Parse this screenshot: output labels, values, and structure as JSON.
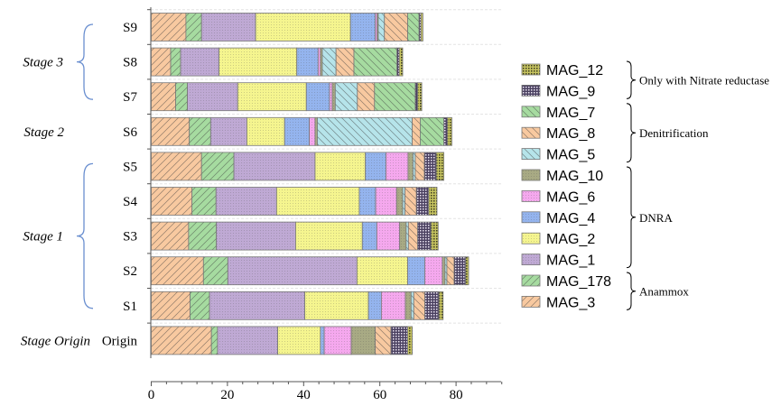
{
  "chart_data": {
    "type": "bar",
    "orientation": "horizontal",
    "stacked": true,
    "title": "",
    "xlabel": "",
    "ylabel": "",
    "xlim": [
      0,
      92
    ],
    "xticks": [
      0,
      20,
      40,
      60,
      80
    ],
    "grid": false,
    "legend_position": "right",
    "categories": [
      "S9",
      "S8",
      "S7",
      "S6",
      "S5",
      "S4",
      "S3",
      "S2",
      "S1",
      "Origin"
    ],
    "series": [
      {
        "name": "MAG_3",
        "color": "#F8C9A0",
        "pattern": "hatch-fwd",
        "values": [
          9.1,
          5.1,
          6.4,
          10.0,
          13.2,
          10.7,
          9.8,
          13.7,
          10.2,
          15.8
        ]
      },
      {
        "name": "MAG_178",
        "color": "#A6DBA0",
        "pattern": "hatch-fwd",
        "values": [
          4.1,
          2.6,
          3.1,
          5.6,
          8.5,
          6.3,
          7.3,
          6.4,
          5.1,
          1.6
        ]
      },
      {
        "name": "MAG_1",
        "color": "#BFA9D4",
        "pattern": "dots",
        "values": [
          14.2,
          10.1,
          13.2,
          9.5,
          21.3,
          15.9,
          20.8,
          33.9,
          25.0,
          15.8
        ]
      },
      {
        "name": "MAG_2",
        "color": "#F5F58F",
        "pattern": "dots",
        "values": [
          24.9,
          20.4,
          18.0,
          9.9,
          13.2,
          21.7,
          17.5,
          13.3,
          16.7,
          11.2
        ]
      },
      {
        "name": "MAG_4",
        "color": "#94B4EE",
        "pattern": "dots",
        "values": [
          6.5,
          5.6,
          6.1,
          6.5,
          5.4,
          4.3,
          3.8,
          4.5,
          3.4,
          1.0
        ]
      },
      {
        "name": "MAG_6",
        "color": "#F5A8EE",
        "pattern": "dots",
        "values": [
          0.5,
          0.6,
          0.7,
          1.5,
          5.8,
          5.5,
          6.0,
          4.6,
          6.3,
          7.1
        ]
      },
      {
        "name": "MAG_10",
        "color": "#A8AA84",
        "pattern": "dots",
        "values": [
          0.3,
          0.5,
          0.8,
          0.6,
          1.3,
          1.6,
          1.7,
          0.7,
          1.5,
          6.3
        ]
      },
      {
        "name": "MAG_5",
        "color": "#B6E4EA",
        "pattern": "hatch-back",
        "values": [
          1.6,
          3.6,
          5.8,
          24.9,
          0.6,
          0.6,
          0.6,
          0.5,
          0.7,
          0
        ]
      },
      {
        "name": "MAG_8",
        "color": "#F8C9A0",
        "pattern": "hatch-back",
        "values": [
          6.1,
          4.7,
          4.5,
          2.1,
          2.4,
          3.0,
          2.4,
          1.9,
          2.9,
          4.1
        ]
      },
      {
        "name": "MAG_7",
        "color": "#A6DBA0",
        "pattern": "hatch-back",
        "values": [
          3.0,
          11.3,
          10.7,
          6.2,
          0,
          0,
          0,
          0,
          0,
          0
        ]
      },
      {
        "name": "MAG_9",
        "color": "#4A4060",
        "pattern": "grid",
        "values": [
          0.5,
          0.6,
          0.6,
          0.9,
          3.1,
          3.2,
          3.5,
          3.0,
          3.7,
          4.4
        ]
      },
      {
        "name": "MAG_12",
        "color": "#C7C460",
        "pattern": "grid",
        "values": [
          0.5,
          0.9,
          1.1,
          1.2,
          2.0,
          2.2,
          1.9,
          0.8,
          1.1,
          1.2
        ]
      }
    ],
    "legend_order": [
      "MAG_12",
      "MAG_9",
      "MAG_7",
      "MAG_8",
      "MAG_5",
      "MAG_10",
      "MAG_6",
      "MAG_4",
      "MAG_2",
      "MAG_1",
      "MAG_178",
      "MAG_3"
    ],
    "legend_groups": [
      {
        "label": "Only with Nitrate reductase",
        "from": 0,
        "to": 1
      },
      {
        "label": "Denitrification",
        "from": 2,
        "to": 4
      },
      {
        "label": "DNRA",
        "from": 5,
        "to": 9
      },
      {
        "label": "Anammox",
        "from": 10,
        "to": 11
      }
    ],
    "stages": [
      {
        "label": "Stage 3",
        "from": 0,
        "to": 2,
        "brace": true
      },
      {
        "label": "Stage 2",
        "from": 3,
        "to": 3,
        "brace": false
      },
      {
        "label": "Stage 1",
        "from": 4,
        "to": 8,
        "brace": true
      },
      {
        "label": "Stage Origin",
        "from": 9,
        "to": 9,
        "brace": false
      }
    ]
  }
}
